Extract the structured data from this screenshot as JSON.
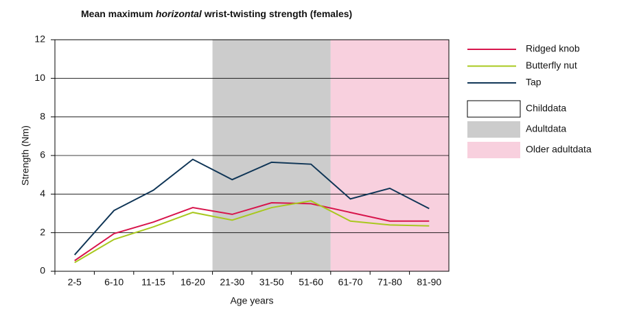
{
  "chart_data": {
    "type": "line",
    "title_parts": [
      "Mean maximum ",
      "horizontal",
      " wrist-twisting strength (females)"
    ],
    "x_label": "Age years",
    "y_label": "Strength (Nm)",
    "categories": [
      "2-5",
      "6-10",
      "11-15",
      "16-20",
      "21-30",
      "31-50",
      "51-60",
      "61-70",
      "71-80",
      "81-90"
    ],
    "series": [
      {
        "name": "Ridged knob",
        "color": "#d7144b",
        "values": [
          0.55,
          1.95,
          2.55,
          3.3,
          2.95,
          3.55,
          3.5,
          3.05,
          2.6,
          2.6
        ]
      },
      {
        "name": "Butterfly nut",
        "color": "#a8c81e",
        "values": [
          0.45,
          1.65,
          2.3,
          3.05,
          2.65,
          3.3,
          3.65,
          2.6,
          2.4,
          2.35
        ]
      },
      {
        "name": "Tap",
        "color": "#0f3556",
        "values": [
          0.85,
          3.15,
          4.2,
          5.8,
          4.75,
          5.65,
          5.55,
          3.75,
          4.3,
          3.25
        ]
      }
    ],
    "regions": [
      {
        "name": "Childdata",
        "color": "#ffffff",
        "span": [
          0,
          3
        ]
      },
      {
        "name": "Adultdata",
        "color": "#cccccc",
        "span": [
          4,
          6
        ]
      },
      {
        "name": "Older adultdata",
        "color": "#f8d0de",
        "span": [
          7,
          9
        ]
      }
    ],
    "ylim": [
      0,
      12
    ],
    "yticks": [
      0,
      2,
      4,
      6,
      8,
      10,
      12
    ],
    "grid": true
  }
}
